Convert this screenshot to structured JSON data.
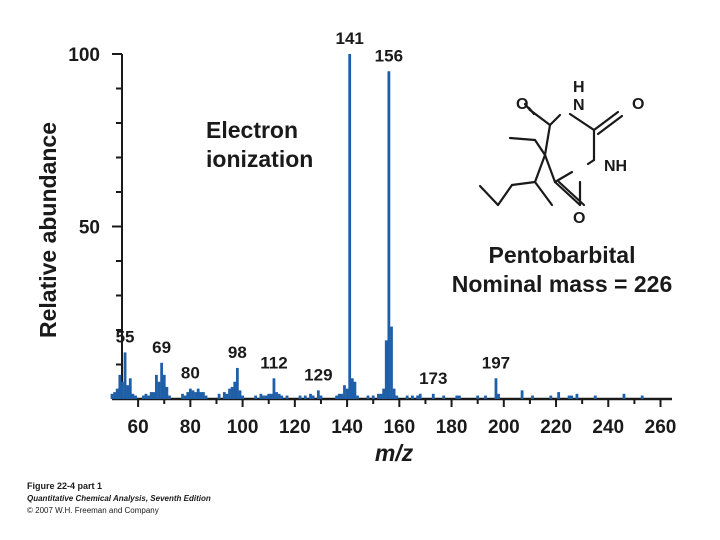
{
  "chart_data": {
    "type": "bar",
    "xlabel": "m/z",
    "ylabel": "Relative abundance",
    "xlim": [
      50,
      262
    ],
    "ylim": [
      0,
      100
    ],
    "xticks": [
      60,
      80,
      100,
      120,
      140,
      160,
      180,
      200,
      220,
      240,
      260
    ],
    "yticks": [
      50,
      100
    ],
    "grid": false,
    "bar_color": "#1f5fa8",
    "peaks": [
      {
        "x": 50,
        "y": 1.5
      },
      {
        "x": 51,
        "y": 2
      },
      {
        "x": 52,
        "y": 3
      },
      {
        "x": 53,
        "y": 7
      },
      {
        "x": 54,
        "y": 5
      },
      {
        "x": 55,
        "y": 13.5
      },
      {
        "x": 56,
        "y": 4
      },
      {
        "x": 57,
        "y": 6
      },
      {
        "x": 58,
        "y": 1.5
      },
      {
        "x": 59,
        "y": 1
      },
      {
        "x": 62,
        "y": 1
      },
      {
        "x": 63,
        "y": 1.5
      },
      {
        "x": 64,
        "y": 1
      },
      {
        "x": 65,
        "y": 2
      },
      {
        "x": 66,
        "y": 2
      },
      {
        "x": 67,
        "y": 7
      },
      {
        "x": 68,
        "y": 5
      },
      {
        "x": 69,
        "y": 10.5
      },
      {
        "x": 70,
        "y": 7
      },
      {
        "x": 71,
        "y": 3.5
      },
      {
        "x": 72,
        "y": 1
      },
      {
        "x": 77,
        "y": 1.5
      },
      {
        "x": 78,
        "y": 1
      },
      {
        "x": 79,
        "y": 2
      },
      {
        "x": 80,
        "y": 3
      },
      {
        "x": 81,
        "y": 2.5
      },
      {
        "x": 82,
        "y": 2
      },
      {
        "x": 83,
        "y": 3
      },
      {
        "x": 84,
        "y": 2
      },
      {
        "x": 85,
        "y": 2
      },
      {
        "x": 86,
        "y": 1
      },
      {
        "x": 91,
        "y": 1.5
      },
      {
        "x": 93,
        "y": 2
      },
      {
        "x": 94,
        "y": 1.5
      },
      {
        "x": 95,
        "y": 3
      },
      {
        "x": 96,
        "y": 3.5
      },
      {
        "x": 97,
        "y": 5
      },
      {
        "x": 98,
        "y": 9
      },
      {
        "x": 99,
        "y": 2.5
      },
      {
        "x": 100,
        "y": 1
      },
      {
        "x": 105,
        "y": 1
      },
      {
        "x": 107,
        "y": 1.5
      },
      {
        "x": 108,
        "y": 1
      },
      {
        "x": 109,
        "y": 1
      },
      {
        "x": 110,
        "y": 1.5
      },
      {
        "x": 111,
        "y": 1.5
      },
      {
        "x": 112,
        "y": 6
      },
      {
        "x": 113,
        "y": 2
      },
      {
        "x": 114,
        "y": 1.5
      },
      {
        "x": 115,
        "y": 1
      },
      {
        "x": 117,
        "y": 1
      },
      {
        "x": 122,
        "y": 1
      },
      {
        "x": 124,
        "y": 1
      },
      {
        "x": 126,
        "y": 1.5
      },
      {
        "x": 127,
        "y": 1
      },
      {
        "x": 129,
        "y": 2.5
      },
      {
        "x": 130,
        "y": 1
      },
      {
        "x": 136,
        "y": 1
      },
      {
        "x": 137,
        "y": 1.5
      },
      {
        "x": 138,
        "y": 1.5
      },
      {
        "x": 139,
        "y": 4
      },
      {
        "x": 140,
        "y": 3
      },
      {
        "x": 141,
        "y": 100
      },
      {
        "x": 142,
        "y": 6
      },
      {
        "x": 143,
        "y": 5
      },
      {
        "x": 144,
        "y": 1
      },
      {
        "x": 148,
        "y": 1
      },
      {
        "x": 150,
        "y": 1
      },
      {
        "x": 152,
        "y": 1.5
      },
      {
        "x": 153,
        "y": 1.5
      },
      {
        "x": 154,
        "y": 3
      },
      {
        "x": 155,
        "y": 17
      },
      {
        "x": 156,
        "y": 95
      },
      {
        "x": 157,
        "y": 21
      },
      {
        "x": 158,
        "y": 3
      },
      {
        "x": 159,
        "y": 1
      },
      {
        "x": 163,
        "y": 1
      },
      {
        "x": 165,
        "y": 1
      },
      {
        "x": 167,
        "y": 1
      },
      {
        "x": 168,
        "y": 1.5
      },
      {
        "x": 173,
        "y": 1.5
      },
      {
        "x": 177,
        "y": 1
      },
      {
        "x": 182,
        "y": 1
      },
      {
        "x": 183,
        "y": 1
      },
      {
        "x": 190,
        "y": 1
      },
      {
        "x": 193,
        "y": 1
      },
      {
        "x": 197,
        "y": 6
      },
      {
        "x": 198,
        "y": 1.5
      },
      {
        "x": 207,
        "y": 2.5
      },
      {
        "x": 211,
        "y": 1
      },
      {
        "x": 218,
        "y": 1
      },
      {
        "x": 221,
        "y": 2
      },
      {
        "x": 225,
        "y": 1
      },
      {
        "x": 226,
        "y": 1
      },
      {
        "x": 228,
        "y": 1.5
      },
      {
        "x": 235,
        "y": 1
      },
      {
        "x": 246,
        "y": 1.5
      },
      {
        "x": 253,
        "y": 1
      }
    ],
    "peak_labels": [
      {
        "x": 55,
        "text": "55"
      },
      {
        "x": 69,
        "text": "69"
      },
      {
        "x": 80,
        "text": "80"
      },
      {
        "x": 98,
        "text": "98"
      },
      {
        "x": 112,
        "text": "112"
      },
      {
        "x": 129,
        "text": "129"
      },
      {
        "x": 141,
        "text": "141"
      },
      {
        "x": 156,
        "text": "156"
      },
      {
        "x": 173,
        "text": "173"
      },
      {
        "x": 197,
        "text": "197"
      }
    ]
  },
  "annotation": {
    "method_line1": "Electron",
    "method_line2": "ionization",
    "compound_name": "Pentobarbital",
    "nominal_mass": "Nominal mass = 226"
  },
  "structure_atoms": {
    "h": "H",
    "n_top": "N",
    "o_left": "O",
    "o_right": "O",
    "nh": "NH",
    "o_bottom": "O"
  },
  "caption": {
    "figure": "Figure 22-4 part 1",
    "book": "Quantitative Chemical Analysis, Seventh Edition",
    "copyright": "© 2007 W.H. Freeman and Company"
  }
}
